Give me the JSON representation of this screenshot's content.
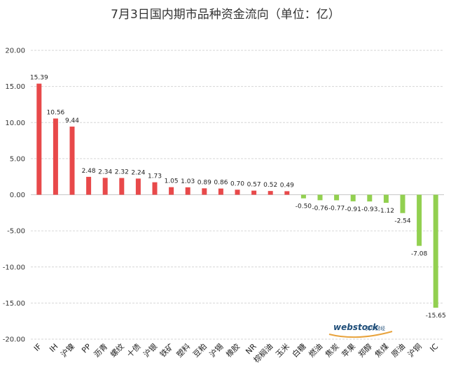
{
  "chart_data": {
    "type": "bar",
    "title": "7月3日国内期市品种资金流向（单位：亿）",
    "categories": [
      "IF",
      "IH",
      "沪镍",
      "PP",
      "沥青",
      "螺纹",
      "十债",
      "沪银",
      "铁矿",
      "塑料",
      "豆粕",
      "沪锡",
      "橡胶",
      "NR",
      "棕榈油",
      "玉米",
      "白糖",
      "燃油",
      "焦炭",
      "苹果",
      "郑醇",
      "焦煤",
      "原油",
      "沪铜",
      "IC"
    ],
    "values": [
      15.39,
      10.56,
      9.44,
      2.48,
      2.34,
      2.32,
      2.24,
      1.73,
      1.05,
      1.03,
      0.89,
      0.86,
      0.7,
      0.57,
      0.52,
      0.49,
      -0.5,
      -0.76,
      -0.77,
      -0.91,
      -0.93,
      -1.12,
      -2.54,
      -7.08,
      -15.65
    ],
    "value_labels": [
      "15.39",
      "10.56",
      "9.44",
      "2.48",
      "2.34",
      "2.32",
      "2.24",
      "1.73",
      "1.05",
      "1.03",
      "0.89",
      "0.86",
      "0.70",
      "0.57",
      "0.52",
      "0.49",
      "-0.50",
      "-0.76",
      "-0.77",
      "-0.91",
      "-0.93",
      "-1.12",
      "-2.54",
      "-7.08",
      "-15.65"
    ],
    "ylim": [
      -20,
      20
    ],
    "yticks": [
      "20.00",
      "15.00",
      "10.00",
      "5.00",
      "0.00",
      "-5.00",
      "-10.00",
      "-15.00",
      "-20.00"
    ],
    "ytick_values": [
      20,
      15,
      10,
      5,
      0,
      -5,
      -10,
      -15,
      -20
    ],
    "grid": true,
    "colors": {
      "positive": "#e8494a",
      "negative": "#92d050"
    },
    "watermark": {
      "main": "webstock",
      "sub": "文华财经"
    }
  }
}
